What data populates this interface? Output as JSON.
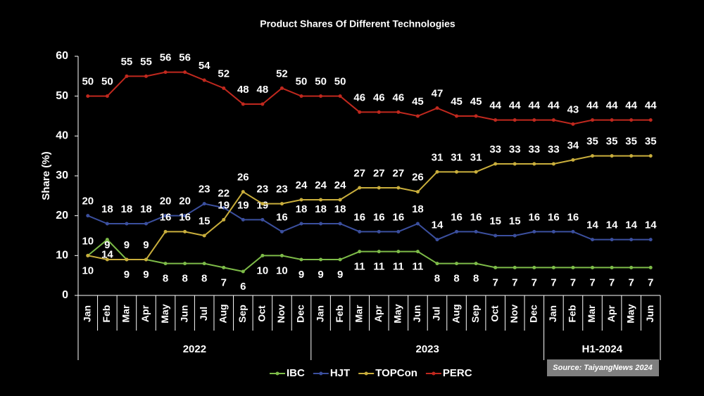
{
  "chart_data": {
    "type": "line",
    "title": "Product Shares Of Different Technologies",
    "y_label": "Share (%)",
    "source": "Source: TaiyangNews 2024",
    "categories": [
      "Jan",
      "Feb",
      "Mar",
      "Apr",
      "May",
      "Jun",
      "Jul",
      "Aug",
      "Sep",
      "Oct",
      "Nov",
      "Dec",
      "Jan",
      "Feb",
      "Mar",
      "Apr",
      "May",
      "Jun",
      "Jul",
      "Aug",
      "Sep",
      "Oct",
      "Nov",
      "Dec",
      "Jan",
      "Feb",
      "Mar",
      "Apr",
      "May",
      "Jun"
    ],
    "category_groups": [
      "2022",
      "2022",
      "2022",
      "2022",
      "2022",
      "2022",
      "2022",
      "2022",
      "2022",
      "2022",
      "2022",
      "2022",
      "2023",
      "2023",
      "2023",
      "2023",
      "2023",
      "2023",
      "2023",
      "2023",
      "2023",
      "2023",
      "2023",
      "2023",
      "H1-2024",
      "H1-2024",
      "H1-2024",
      "H1-2024",
      "H1-2024",
      "H1-2024"
    ],
    "ylim": [
      0,
      60
    ],
    "yticks": [
      0,
      10,
      20,
      30,
      40,
      50,
      60
    ],
    "grid": false,
    "legend": "bottom",
    "series": [
      {
        "name": "IBC",
        "color": "#7dbb48",
        "values": [
          10,
          14,
          9,
          9,
          8,
          8,
          8,
          7,
          6,
          10,
          10,
          9,
          9,
          9,
          11,
          11,
          11,
          11,
          8,
          8,
          8,
          7,
          7,
          7,
          7,
          7,
          7,
          7,
          7,
          7
        ]
      },
      {
        "name": "HJT",
        "color": "#3b4f9e",
        "values": [
          20,
          18,
          18,
          18,
          20,
          20,
          23,
          22,
          19,
          19,
          16,
          18,
          18,
          18,
          16,
          16,
          16,
          18,
          14,
          16,
          16,
          15,
          15,
          16,
          16,
          16,
          14,
          14,
          14,
          14
        ]
      },
      {
        "name": "TOPCon",
        "color": "#c9ae3c",
        "values": [
          10,
          9,
          9,
          9,
          16,
          16,
          15,
          19,
          26,
          23,
          23,
          24,
          24,
          24,
          27,
          27,
          27,
          26,
          31,
          31,
          31,
          33,
          33,
          33,
          33,
          34,
          35,
          35,
          35,
          35
        ]
      },
      {
        "name": "PERC",
        "color": "#c0281e",
        "values": [
          50,
          50,
          55,
          55,
          56,
          56,
          54,
          52,
          48,
          48,
          52,
          50,
          50,
          50,
          46,
          46,
          46,
          45,
          47,
          45,
          45,
          44,
          44,
          44,
          44,
          43,
          44,
          44,
          44,
          44
        ]
      }
    ]
  }
}
